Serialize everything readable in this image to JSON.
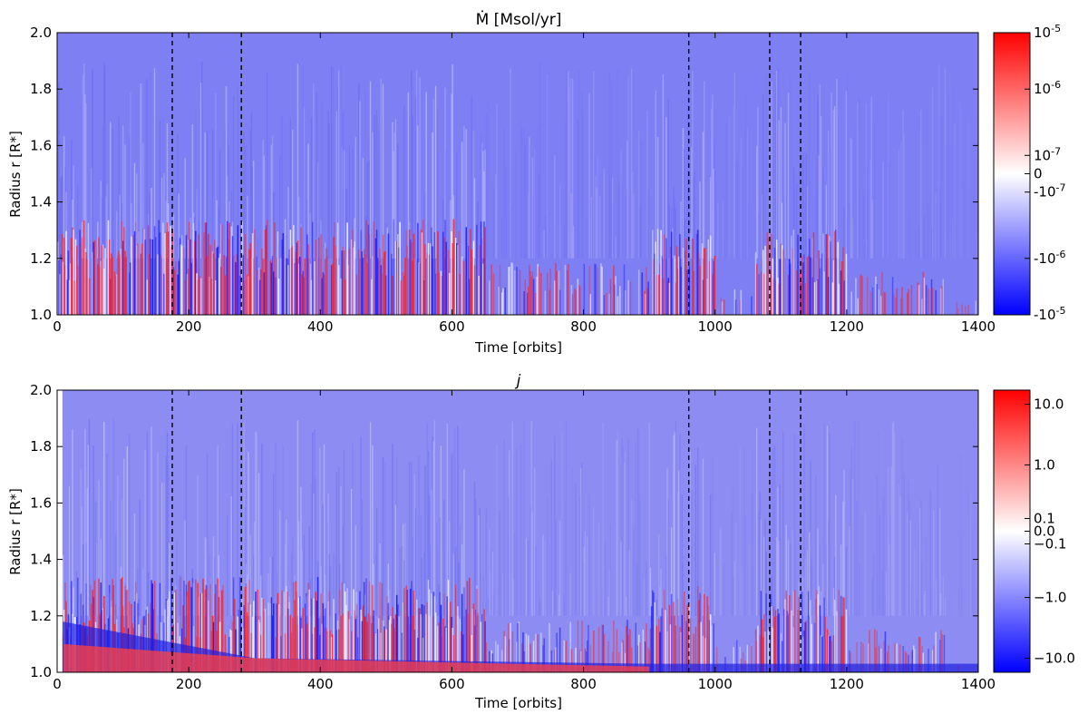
{
  "chart_data": [
    {
      "type": "heatmap",
      "title": "Ṁ [Msol/yr]",
      "xlabel": "Time [orbits]",
      "ylabel": "Radius r [R*]",
      "xlim": [
        0,
        1400
      ],
      "ylim": [
        1.0,
        2.0
      ],
      "x_ticks": [
        "0",
        "200",
        "400",
        "600",
        "800",
        "1000",
        "1200",
        "1400"
      ],
      "y_ticks": [
        "1.0",
        "1.2",
        "1.4",
        "1.6",
        "1.8",
        "2.0"
      ],
      "colormap": "bwr",
      "colors": {
        "low": "#0000ff",
        "mid": "#ffffff",
        "high": "#ff0000"
      },
      "colorbar": {
        "scale": "symlog",
        "range": [
          -1e-05,
          1e-05
        ],
        "tick_labels": [
          "10^-5",
          "10^-6",
          "10^-7",
          "0",
          "-10^-7",
          "-10^-6",
          "-10^-5"
        ]
      },
      "vertical_lines_at_time": [
        175,
        280,
        960,
        1083,
        1130
      ],
      "vertical_line_style": "dashed",
      "grid": false
    },
    {
      "type": "heatmap",
      "title": "j",
      "xlabel": "Time [orbits]",
      "ylabel": "Radius r [R*]",
      "xlim": [
        0,
        1400
      ],
      "ylim": [
        1.0,
        2.0
      ],
      "x_ticks": [
        "0",
        "200",
        "400",
        "600",
        "800",
        "1000",
        "1200",
        "1400"
      ],
      "y_ticks": [
        "1.0",
        "1.2",
        "1.4",
        "1.6",
        "1.8",
        "2.0"
      ],
      "colormap": "bwr",
      "colors": {
        "low": "#0000ff",
        "mid": "#ffffff",
        "high": "#ff0000"
      },
      "colorbar": {
        "scale": "symlog",
        "range": [
          -20,
          20
        ],
        "tick_labels": [
          "10.0",
          "1.0",
          "0.1",
          "0.0",
          "−0.1",
          "−1.0",
          "−10.0"
        ]
      },
      "vertical_lines_at_time": [
        175,
        280,
        960,
        1083,
        1130
      ],
      "vertical_line_style": "dashed",
      "grid": false
    }
  ]
}
